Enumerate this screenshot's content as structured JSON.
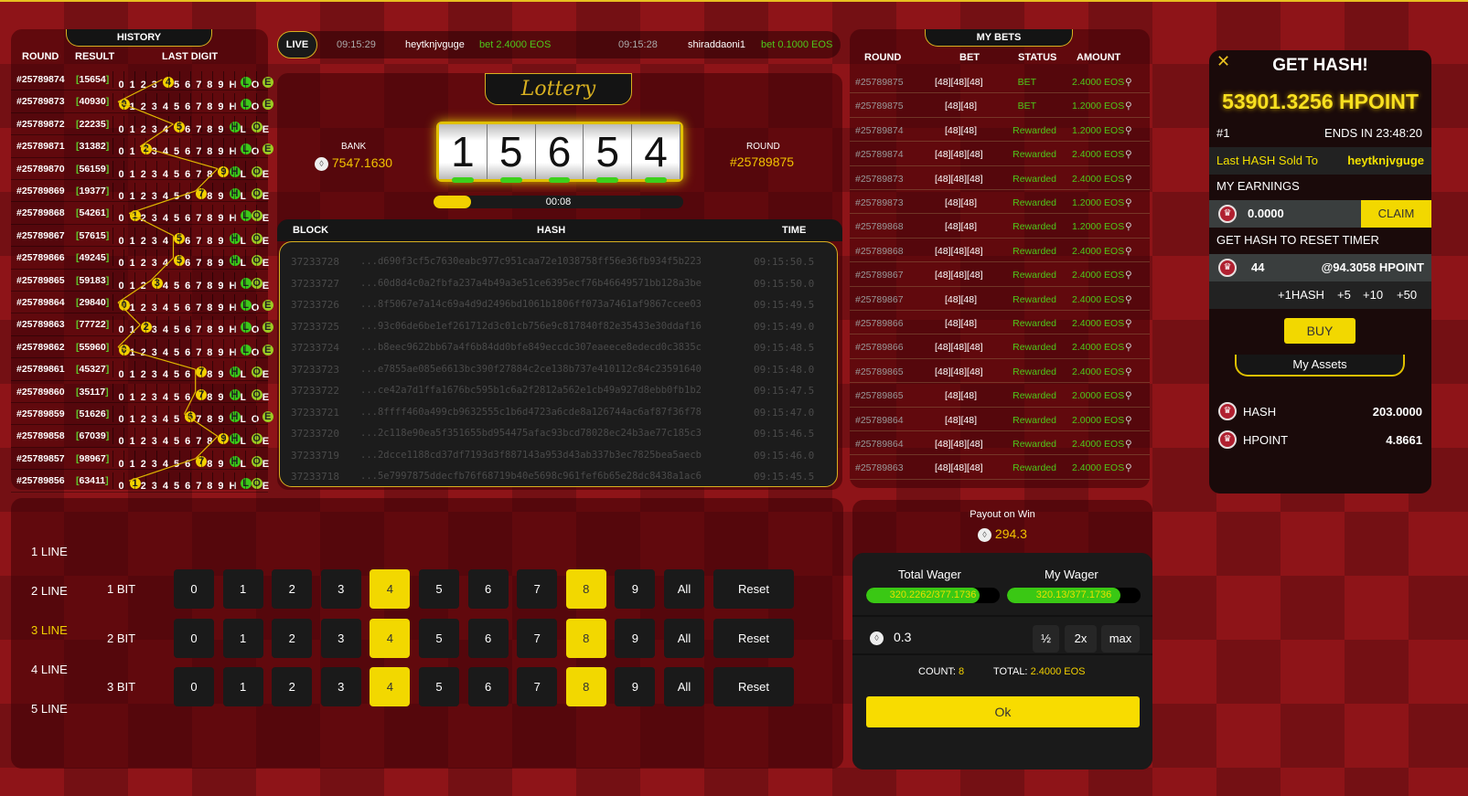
{
  "history": {
    "title": "HISTORY",
    "headers": [
      "ROUND",
      "RESULT",
      "LAST DIGIT"
    ],
    "digit_labels": [
      "0",
      "1",
      "2",
      "3",
      "4",
      "5",
      "6",
      "7",
      "8",
      "9",
      "H",
      "L",
      "O",
      "E"
    ],
    "rows": [
      {
        "round": "#25789874",
        "result": "15654"
      },
      {
        "round": "#25789873",
        "result": "40930"
      },
      {
        "round": "#25789872",
        "result": "22235"
      },
      {
        "round": "#25789871",
        "result": "31382"
      },
      {
        "round": "#25789870",
        "result": "56159"
      },
      {
        "round": "#25789869",
        "result": "19377"
      },
      {
        "round": "#25789868",
        "result": "54261"
      },
      {
        "round": "#25789867",
        "result": "57615"
      },
      {
        "round": "#25789866",
        "result": "49245"
      },
      {
        "round": "#25789865",
        "result": "59183"
      },
      {
        "round": "#25789864",
        "result": "29840"
      },
      {
        "round": "#25789863",
        "result": "77722"
      },
      {
        "round": "#25789862",
        "result": "55960"
      },
      {
        "round": "#25789861",
        "result": "45327"
      },
      {
        "round": "#25789860",
        "result": "35117"
      },
      {
        "round": "#25789859",
        "result": "51626"
      },
      {
        "round": "#25789858",
        "result": "67039"
      },
      {
        "round": "#25789857",
        "result": "98967"
      },
      {
        "round": "#25789856",
        "result": "63411"
      }
    ]
  },
  "live": {
    "label": "LIVE",
    "entries": [
      {
        "time": "09:15:29",
        "user": "heytknjvguge",
        "bet": "bet 2.4000 EOS"
      },
      {
        "time": "09:15:28",
        "user": "shiraddaoni1",
        "bet": "bet 0.1000 EOS"
      }
    ]
  },
  "lottery": {
    "title": "Lottery",
    "bank_label": "BANK",
    "bank_value": "7547.1630",
    "round_label": "ROUND",
    "round_value": "#25789875",
    "reels": [
      "1",
      "5",
      "6",
      "5",
      "4"
    ],
    "timer": "00:08",
    "timer_progress": 0.15
  },
  "hashes": {
    "headers": [
      "BLOCK",
      "HASH",
      "TIME"
    ],
    "rows": [
      [
        "37233728",
        "...d690f3cf5c7630eabc977c951caa72e1038758ff56e36fb934f5b223",
        "09:15:50.5"
      ],
      [
        "37233727",
        "...60d8d4c0a2fbfa237a4b49a3e51ce6395ecf76b46649571bb128a3be",
        "09:15:50.0"
      ],
      [
        "37233726",
        "...8f5067e7a14c69a4d9d2496bd1061b1806ff073a7461af9867ccee03",
        "09:15:49.5"
      ],
      [
        "37233725",
        "...93c06de6be1ef261712d3c01cb756e9c817840f82e35433e30ddaf16",
        "09:15:49.0"
      ],
      [
        "37233724",
        "...b8eec9622bb67a4f6b84dd0bfe849eccdc307eaeece8edecd0c3835c",
        "09:15:48.5"
      ],
      [
        "37233723",
        "...e7855ae085e6613bc390f27884c2ce138b737e410112c84c23591640",
        "09:15:48.0"
      ],
      [
        "37233722",
        "...ce42a7d1ffa1676bc595b1c6a2f2812a562e1cb49a927d8ebb0fb1b2",
        "09:15:47.5"
      ],
      [
        "37233721",
        "...8ffff460a499cb9632555c1b6d4723a6cde8a126744ac6af87f36f78",
        "09:15:47.0"
      ],
      [
        "37233720",
        "...2c118e90ea5f351655bd954475afac93bcd78028ec24b3ae77c185c3",
        "09:15:46.5"
      ],
      [
        "37233719",
        "...2dcce1188cd37df7193d3f887143a953d43ab337b3ec7825bea5aecb",
        "09:15:46.0"
      ],
      [
        "37233718",
        "...5e7997875ddecfb76f68719b40e5698c961fef6b65e28dc8438a1ac6",
        "09:15:45.5"
      ]
    ]
  },
  "mybets": {
    "title": "MY BETS",
    "headers": [
      "ROUND",
      "BET",
      "STATUS",
      "AMOUNT"
    ],
    "rows": [
      [
        "#25789875",
        "[48][48][48]",
        "BET",
        "2.4000 EOS"
      ],
      [
        "#25789875",
        "[48][48]",
        "BET",
        "1.2000 EOS"
      ],
      [
        "#25789874",
        "[48][48]",
        "Rewarded",
        "1.2000 EOS"
      ],
      [
        "#25789874",
        "[48][48][48]",
        "Rewarded",
        "2.4000 EOS"
      ],
      [
        "#25789873",
        "[48][48][48]",
        "Rewarded",
        "2.4000 EOS"
      ],
      [
        "#25789873",
        "[48][48]",
        "Rewarded",
        "1.2000 EOS"
      ],
      [
        "#25789868",
        "[48][48]",
        "Rewarded",
        "1.2000 EOS"
      ],
      [
        "#25789868",
        "[48][48][48]",
        "Rewarded",
        "2.4000 EOS"
      ],
      [
        "#25789867",
        "[48][48][48]",
        "Rewarded",
        "2.4000 EOS"
      ],
      [
        "#25789867",
        "[48][48]",
        "Rewarded",
        "2.4000 EOS"
      ],
      [
        "#25789866",
        "[48][48]",
        "Rewarded",
        "2.4000 EOS"
      ],
      [
        "#25789866",
        "[48][48][48]",
        "Rewarded",
        "2.4000 EOS"
      ],
      [
        "#25789865",
        "[48][48][48]",
        "Rewarded",
        "2.4000 EOS"
      ],
      [
        "#25789865",
        "[48][48]",
        "Rewarded",
        "2.0000 EOS"
      ],
      [
        "#25789864",
        "[48][48]",
        "Rewarded",
        "2.0000 EOS"
      ],
      [
        "#25789864",
        "[48][48][48]",
        "Rewarded",
        "2.4000 EOS"
      ],
      [
        "#25789863",
        "[48][48][48]",
        "Rewarded",
        "2.4000 EOS"
      ]
    ]
  },
  "gethash": {
    "title": "GET HASH!",
    "pot": "53901.3256 HPOINT",
    "rank": "#1",
    "ends": "ENDS IN 23:48:20",
    "last_sold_label": "Last HASH Sold To",
    "last_sold_user": "heytknjvguge",
    "earnings_label": "MY EARNINGS",
    "earnings": "0.0000",
    "claim": "CLAIM",
    "reset_label": "GET HASH TO RESET TIMER",
    "hash_qty": "44",
    "hash_price": "@94.3058 HPOINT",
    "increments": [
      "+1HASH",
      "+5",
      "+10",
      "+50"
    ],
    "buy": "BUY",
    "assets_tab": "My Assets",
    "assets": [
      {
        "name": "HASH",
        "value": "203.0000"
      },
      {
        "name": "HPOINT",
        "value": "4.8661"
      }
    ]
  },
  "betting": {
    "lines": [
      "1 LINE",
      "2 LINE",
      "3 LINE",
      "4 LINE",
      "5 LINE"
    ],
    "active_line": 2,
    "bits": [
      "1 BIT",
      "2 BIT",
      "3 BIT"
    ],
    "numbers": [
      "0",
      "1",
      "2",
      "3",
      "4",
      "5",
      "6",
      "7",
      "8",
      "9",
      "All"
    ],
    "selected": [
      "4",
      "8"
    ],
    "reset": "Reset"
  },
  "wager": {
    "payout_label": "Payout on Win",
    "payout": "294.3",
    "total_label": "Total Wager",
    "total_value": "320.2262/377.1736",
    "total_fraction": 0.849,
    "my_label": "My Wager",
    "my_value": "320.13/377.1736",
    "my_fraction": 0.849,
    "amount": "0.3",
    "half": "½",
    "double": "2x",
    "max": "max",
    "count_label": "COUNT:",
    "count": "8",
    "total_amt_label": "TOTAL:",
    "total_amt": "2.4000 EOS",
    "ok": "Ok"
  },
  "colors": {
    "accent": "#f2d800",
    "green": "#5ec82a",
    "background": "#8e1418"
  }
}
